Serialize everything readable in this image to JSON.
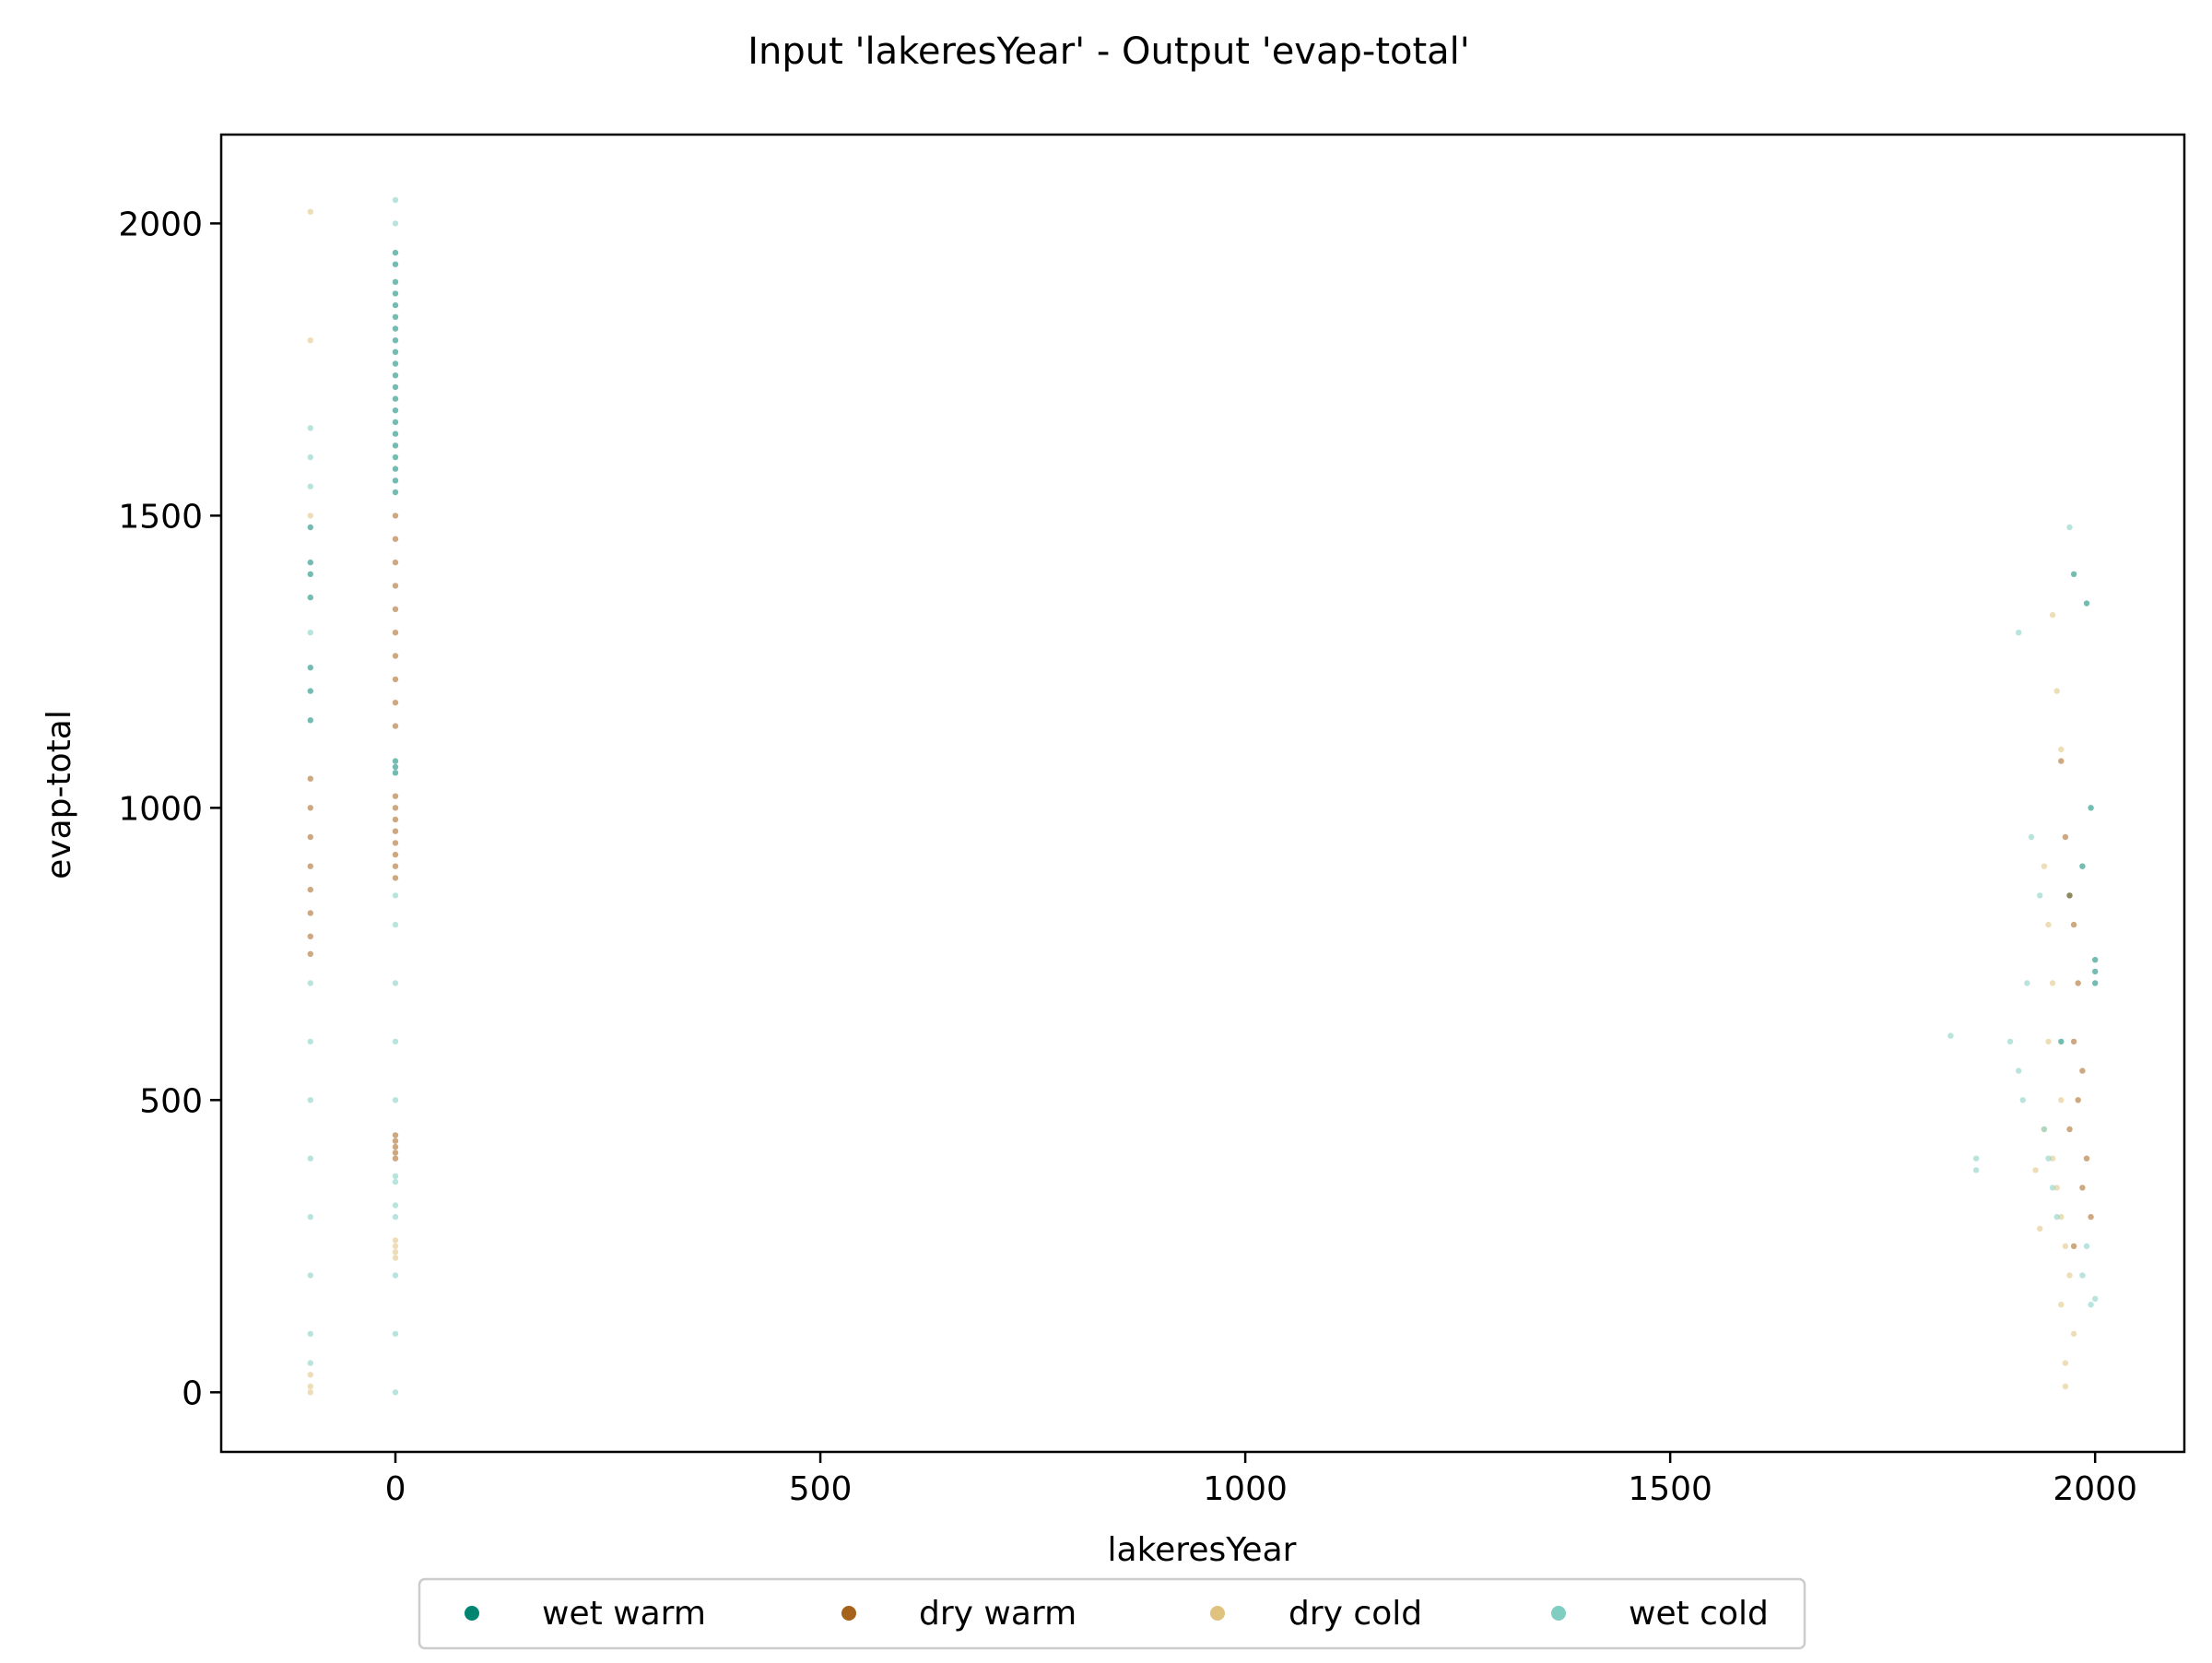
{
  "chart_data": {
    "type": "scatter",
    "title": "Input 'lakeresYear' - Output 'evap-total'",
    "xlabel": "lakeresYear",
    "ylabel": "evap-total",
    "xlim": [
      -205,
      2105
    ],
    "ylim": [
      -102,
      2152
    ],
    "xticks": [
      0,
      500,
      1000,
      1500,
      2000
    ],
    "xtick_labels": [
      "0",
      "500",
      "1000",
      "1500",
      "2000"
    ],
    "yticks": [
      0,
      500,
      1000,
      1500,
      2000
    ],
    "ytick_labels": [
      "0",
      "500",
      "1000",
      "1500",
      "2000"
    ],
    "grid": false,
    "legend_placement": "bottom-center (below plot)",
    "legend": [
      "wet warm",
      "dry warm",
      "dry cold",
      "wet cold"
    ],
    "series": [
      {
        "name": "wet warm",
        "color": "#018571",
        "points": [
          [
            0,
            1950
          ],
          [
            0,
            1930
          ],
          [
            0,
            1900
          ],
          [
            0,
            1880
          ],
          [
            0,
            1860
          ],
          [
            0,
            1840
          ],
          [
            0,
            1820
          ],
          [
            0,
            1800
          ],
          [
            0,
            1780
          ],
          [
            0,
            1760
          ],
          [
            0,
            1740
          ],
          [
            0,
            1720
          ],
          [
            0,
            1700
          ],
          [
            0,
            1680
          ],
          [
            0,
            1660
          ],
          [
            0,
            1640
          ],
          [
            0,
            1620
          ],
          [
            0,
            1600
          ],
          [
            0,
            1580
          ],
          [
            0,
            1560
          ],
          [
            0,
            1540
          ],
          [
            0,
            1080
          ],
          [
            0,
            1070
          ],
          [
            0,
            1060
          ],
          [
            -100,
            1480
          ],
          [
            -100,
            1420
          ],
          [
            -100,
            1400
          ],
          [
            -100,
            1360
          ],
          [
            -100,
            1240
          ],
          [
            -100,
            1200
          ],
          [
            -100,
            1150
          ],
          [
            1975,
            1400
          ],
          [
            1990,
            1350
          ],
          [
            1995,
            1000
          ],
          [
            2000,
            740
          ],
          [
            2000,
            720
          ],
          [
            2000,
            700
          ],
          [
            1985,
            900
          ],
          [
            1970,
            850
          ],
          [
            1960,
            600
          ]
        ]
      },
      {
        "name": "dry warm",
        "color": "#a6611a",
        "points": [
          [
            0,
            1500
          ],
          [
            0,
            1460
          ],
          [
            0,
            1420
          ],
          [
            0,
            1380
          ],
          [
            0,
            1340
          ],
          [
            0,
            1300
          ],
          [
            0,
            1260
          ],
          [
            0,
            1220
          ],
          [
            0,
            1180
          ],
          [
            0,
            1140
          ],
          [
            0,
            1020
          ],
          [
            0,
            1000
          ],
          [
            0,
            980
          ],
          [
            0,
            960
          ],
          [
            0,
            940
          ],
          [
            0,
            920
          ],
          [
            0,
            900
          ],
          [
            0,
            880
          ],
          [
            0,
            440
          ],
          [
            0,
            430
          ],
          [
            0,
            420
          ],
          [
            0,
            410
          ],
          [
            0,
            400
          ],
          [
            -100,
            1050
          ],
          [
            -100,
            1000
          ],
          [
            -100,
            950
          ],
          [
            -100,
            900
          ],
          [
            -100,
            860
          ],
          [
            -100,
            820
          ],
          [
            -100,
            780
          ],
          [
            -100,
            750
          ],
          [
            1960,
            1080
          ],
          [
            1965,
            950
          ],
          [
            1970,
            850
          ],
          [
            1975,
            800
          ],
          [
            1980,
            700
          ],
          [
            1975,
            600
          ],
          [
            1985,
            550
          ],
          [
            1980,
            500
          ],
          [
            1970,
            450
          ],
          [
            1990,
            400
          ],
          [
            1985,
            350
          ],
          [
            1995,
            300
          ],
          [
            1975,
            250
          ]
        ]
      },
      {
        "name": "dry cold",
        "color": "#dfc27d",
        "points": [
          [
            -100,
            2020
          ],
          [
            -100,
            1800
          ],
          [
            -100,
            1500
          ],
          [
            -100,
            30
          ],
          [
            -100,
            10
          ],
          [
            -100,
            0
          ],
          [
            0,
            260
          ],
          [
            0,
            250
          ],
          [
            0,
            240
          ],
          [
            0,
            230
          ],
          [
            1950,
            1330
          ],
          [
            1955,
            1200
          ],
          [
            1960,
            1100
          ],
          [
            1940,
            900
          ],
          [
            1945,
            800
          ],
          [
            1950,
            700
          ],
          [
            1945,
            600
          ],
          [
            1960,
            500
          ],
          [
            1940,
            450
          ],
          [
            1950,
            400
          ],
          [
            1955,
            350
          ],
          [
            1960,
            300
          ],
          [
            1965,
            250
          ],
          [
            1970,
            200
          ],
          [
            1960,
            150
          ],
          [
            1975,
            100
          ],
          [
            1965,
            50
          ],
          [
            1965,
            10
          ],
          [
            1930,
            380
          ],
          [
            1935,
            280
          ]
        ]
      },
      {
        "name": "wet cold",
        "color": "#80cdc1",
        "points": [
          [
            0,
            2040
          ],
          [
            0,
            2000
          ],
          [
            -100,
            1650
          ],
          [
            -100,
            1600
          ],
          [
            -100,
            1550
          ],
          [
            -100,
            1300
          ],
          [
            -100,
            700
          ],
          [
            -100,
            600
          ],
          [
            -100,
            500
          ],
          [
            -100,
            400
          ],
          [
            -100,
            300
          ],
          [
            -100,
            200
          ],
          [
            -100,
            100
          ],
          [
            -100,
            50
          ],
          [
            0,
            850
          ],
          [
            0,
            800
          ],
          [
            0,
            700
          ],
          [
            0,
            600
          ],
          [
            0,
            500
          ],
          [
            0,
            370
          ],
          [
            0,
            360
          ],
          [
            0,
            320
          ],
          [
            0,
            300
          ],
          [
            0,
            200
          ],
          [
            0,
            100
          ],
          [
            0,
            0
          ],
          [
            1970,
            1480
          ],
          [
            1910,
            1300
          ],
          [
            1925,
            950
          ],
          [
            1935,
            850
          ],
          [
            1920,
            700
          ],
          [
            1830,
            610
          ],
          [
            1860,
            400
          ],
          [
            1860,
            380
          ],
          [
            1900,
            600
          ],
          [
            1910,
            550
          ],
          [
            1915,
            500
          ],
          [
            1940,
            450
          ],
          [
            1945,
            400
          ],
          [
            1950,
            350
          ],
          [
            1955,
            300
          ],
          [
            1990,
            250
          ],
          [
            1985,
            200
          ],
          [
            1995,
            150
          ],
          [
            2000,
            160
          ]
        ]
      }
    ]
  }
}
